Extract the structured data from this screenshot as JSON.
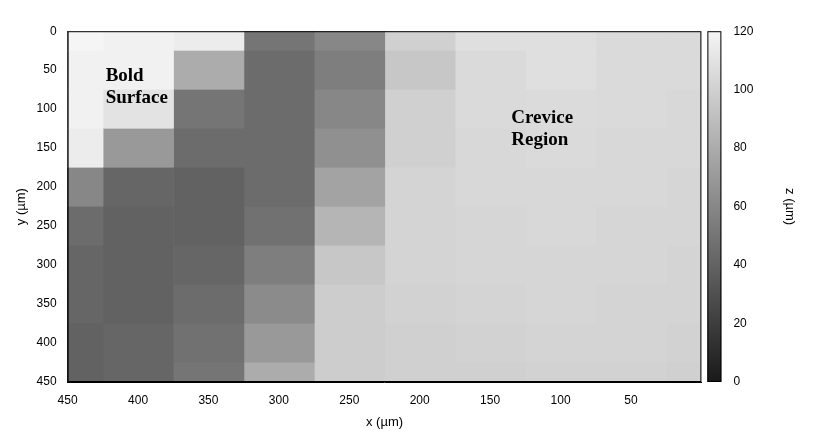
{
  "chart_data": {
    "type": "heatmap",
    "xlabel": "x (µm)",
    "ylabel": "y (µm)",
    "zlabel": "z (µm)",
    "annotations": [
      "Bold Surface",
      "Crevice Region"
    ],
    "x": [
      0,
      50,
      100,
      150,
      200,
      250,
      300,
      350,
      400,
      450
    ],
    "y": [
      0,
      50,
      100,
      150,
      200,
      250,
      300,
      350,
      400,
      450
    ],
    "values": [
      [
        105,
        105,
        108,
        108,
        100,
        60,
        50,
        115,
        118,
        120
      ],
      [
        105,
        105,
        108,
        105,
        95,
        55,
        45,
        80,
        118,
        118
      ],
      [
        104,
        105,
        106,
        105,
        100,
        60,
        45,
        50,
        110,
        118
      ],
      [
        104,
        104,
        105,
        104,
        100,
        65,
        45,
        45,
        70,
        115
      ],
      [
        103,
        104,
        104,
        104,
        102,
        75,
        45,
        40,
        42,
        60
      ],
      [
        103,
        103,
        104,
        103,
        102,
        85,
        48,
        40,
        40,
        45
      ],
      [
        102,
        103,
        103,
        103,
        102,
        95,
        55,
        42,
        40,
        42
      ],
      [
        102,
        102,
        103,
        102,
        101,
        98,
        62,
        45,
        40,
        42
      ],
      [
        101,
        102,
        102,
        101,
        100,
        98,
        70,
        48,
        42,
        40
      ],
      [
        100,
        101,
        101,
        100,
        100,
        98,
        80,
        50,
        42,
        40
      ]
    ],
    "xlim": [
      0,
      450
    ],
    "ylim": [
      0,
      450
    ],
    "xticks": [
      50,
      100,
      150,
      200,
      250,
      300,
      350,
      400,
      450
    ],
    "yticks": [
      0,
      50,
      100,
      150,
      200,
      250,
      300,
      350,
      400,
      450
    ],
    "colorbar_range": [
      0,
      120
    ],
    "colorbar_ticks": [
      0,
      20,
      40,
      60,
      80,
      100,
      120
    ],
    "grid": false
  }
}
